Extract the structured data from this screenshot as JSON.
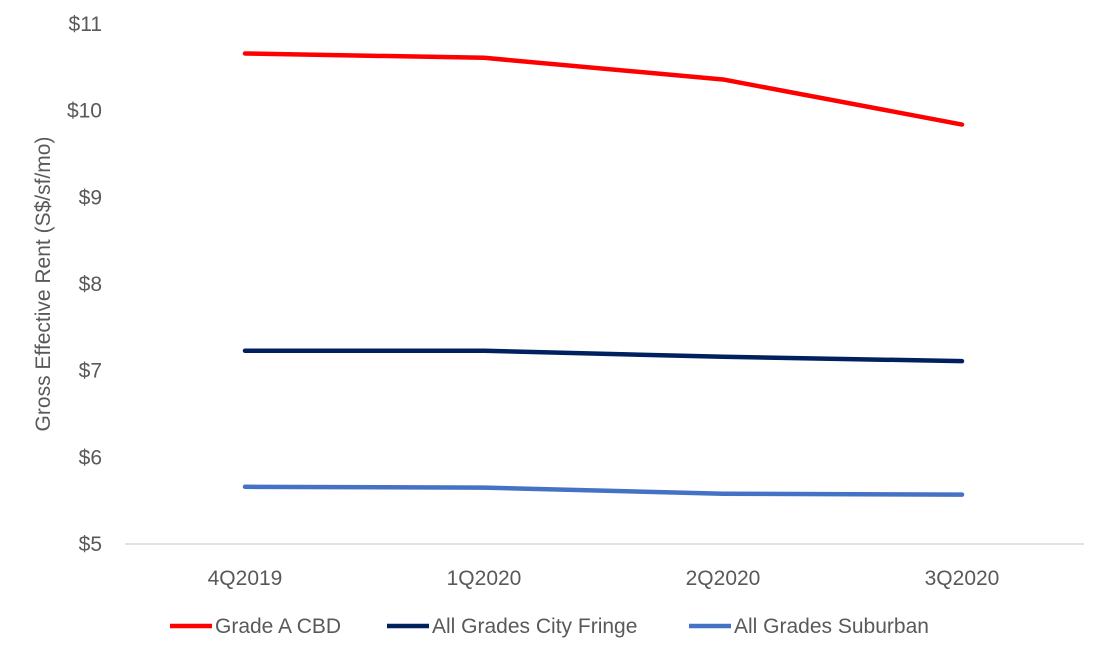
{
  "chart_data": {
    "type": "line",
    "title": "",
    "xlabel": "",
    "ylabel": "Gross Effective Rent (S$/sf/mo)",
    "categories": [
      "4Q2019",
      "1Q2020",
      "2Q2020",
      "3Q2020"
    ],
    "ylim": [
      5,
      11
    ],
    "yticks": [
      5,
      6,
      7,
      8,
      9,
      10,
      11
    ],
    "ytick_labels": [
      "$5",
      "$6",
      "$7",
      "$8",
      "$9",
      "$10",
      "$11"
    ],
    "grid": false,
    "legend_position": "bottom",
    "series": [
      {
        "name": "Grade A CBD",
        "color": "#ff0000",
        "values": [
          10.66,
          10.61,
          10.36,
          9.84
        ]
      },
      {
        "name": "All Grades City Fringe",
        "color": "#002060",
        "values": [
          7.23,
          7.23,
          7.16,
          7.11
        ]
      },
      {
        "name": "All Grades Suburban",
        "color": "#4472c4",
        "values": [
          5.66,
          5.65,
          5.58,
          5.57
        ]
      }
    ]
  }
}
